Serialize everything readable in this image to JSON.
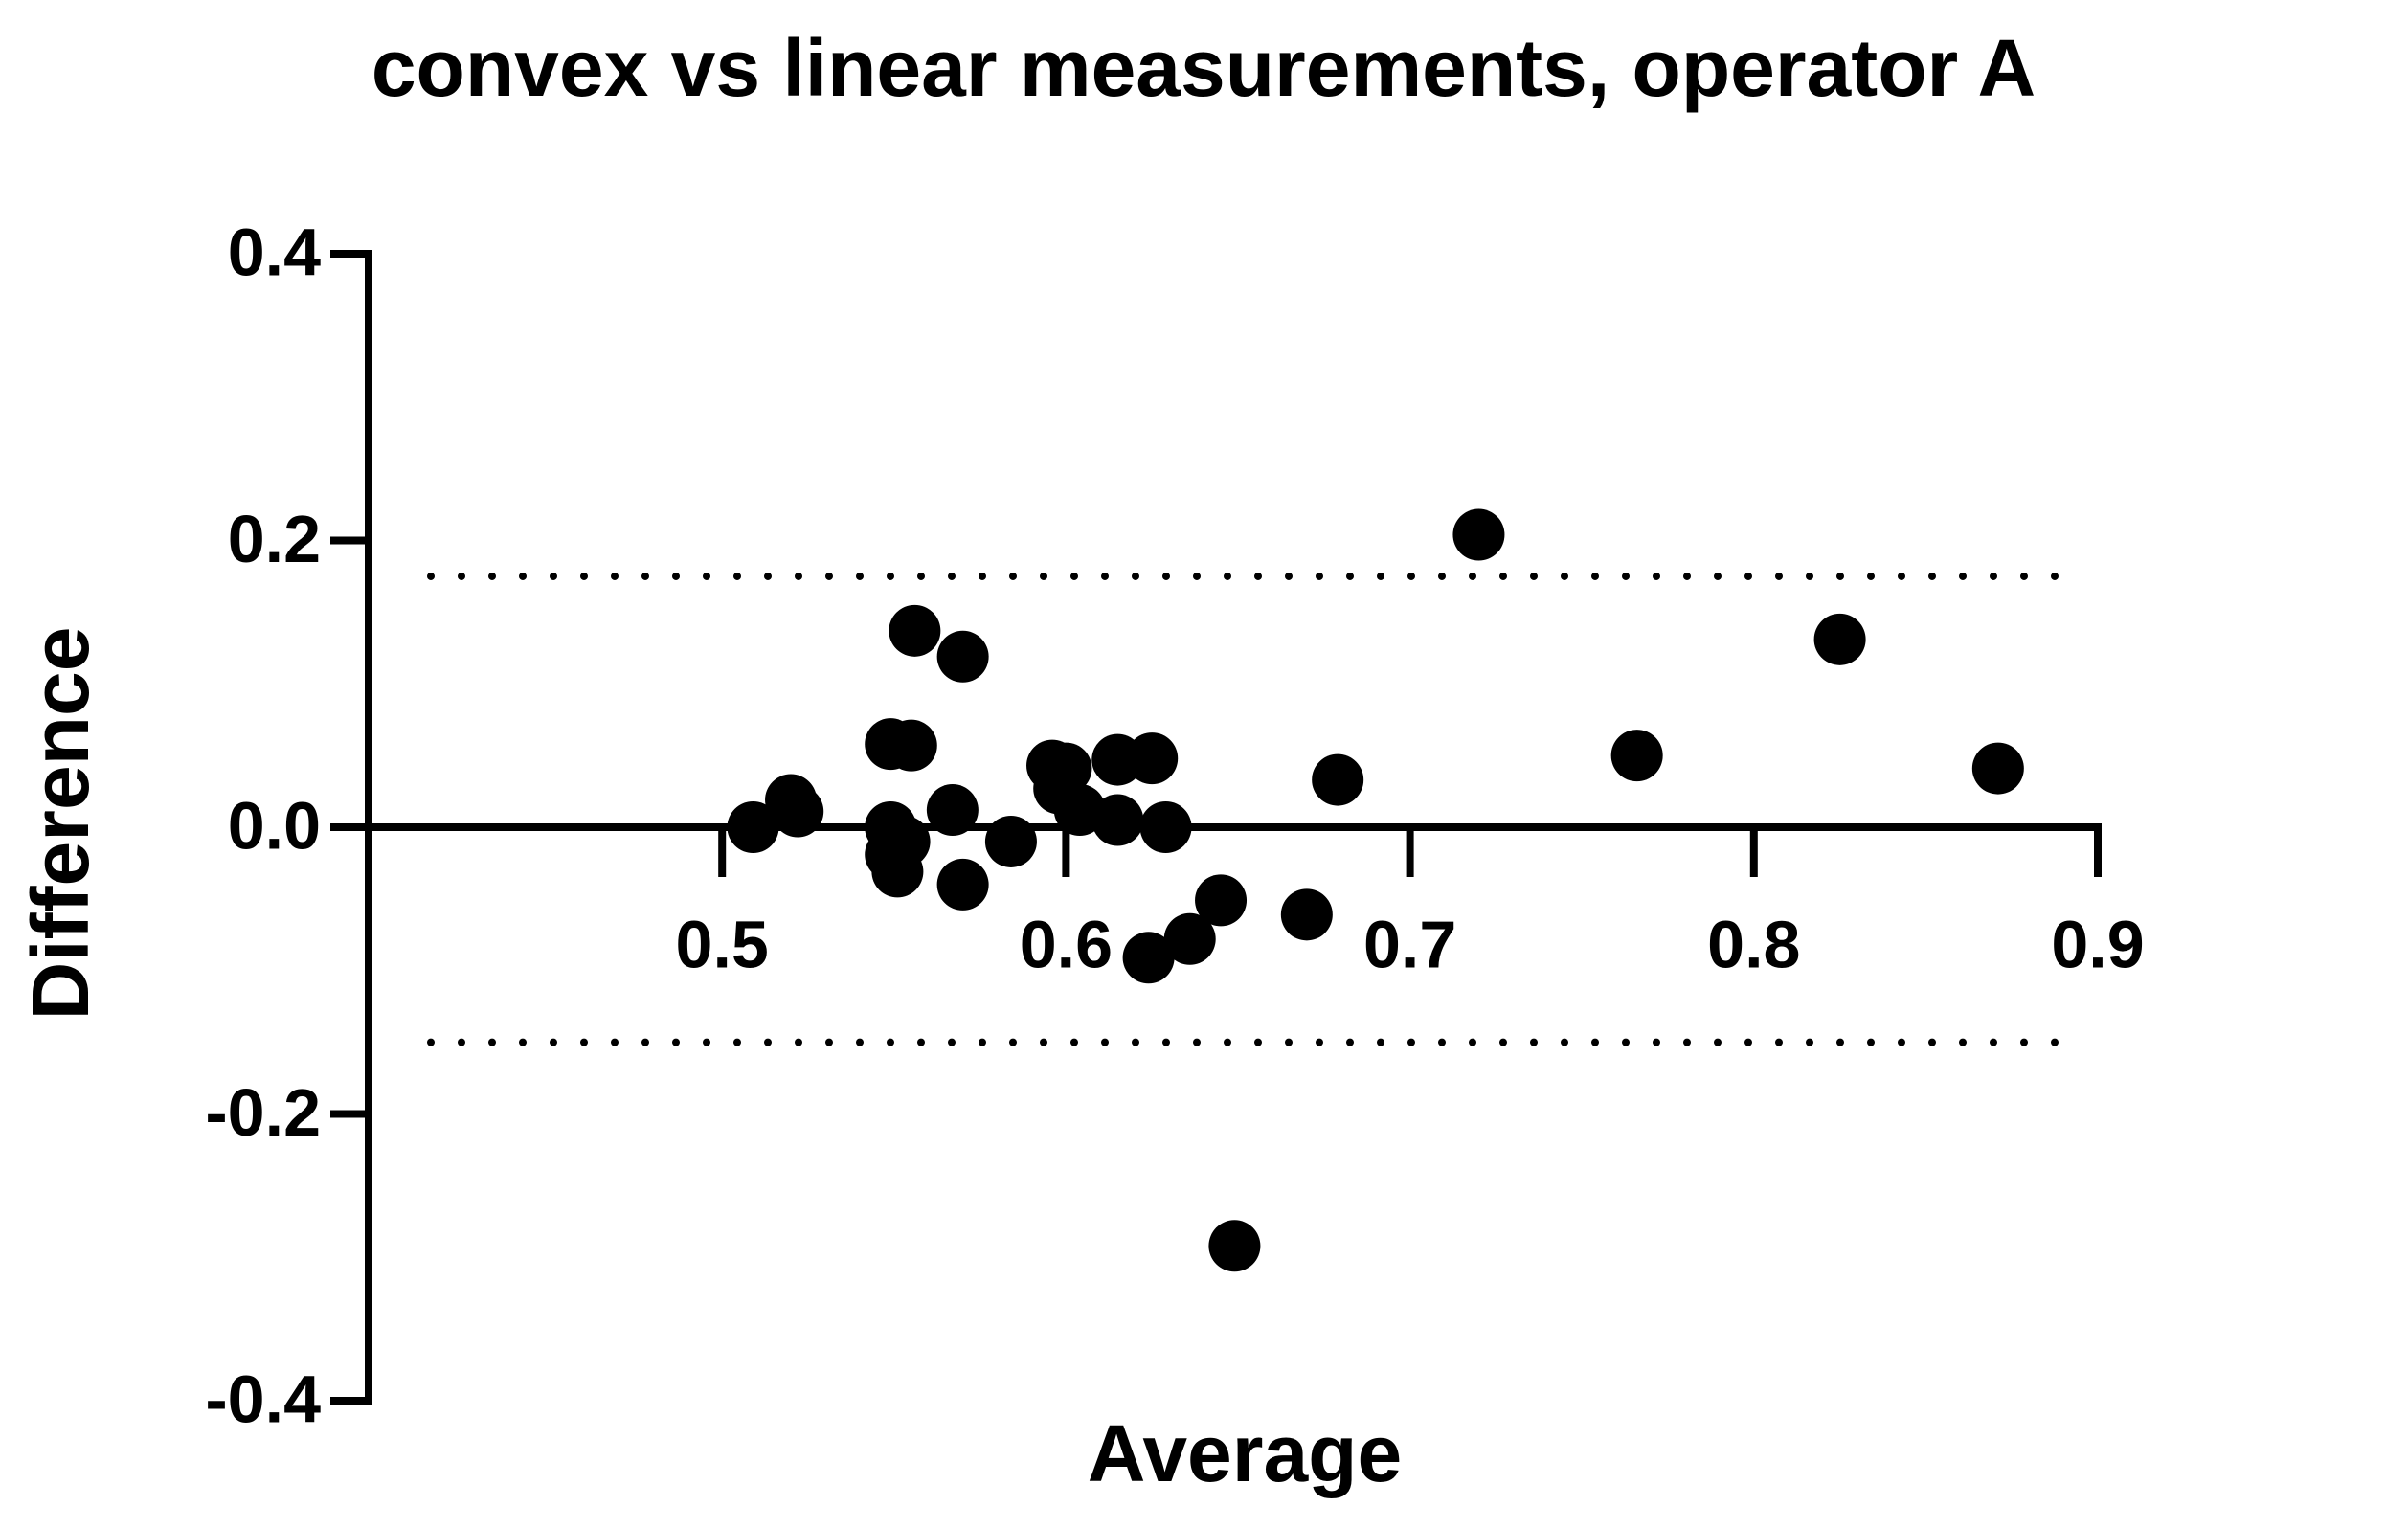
{
  "chart_data": {
    "type": "scatter",
    "title": "convex vs linear measurements, operator A",
    "x_label": "Average",
    "y_label": "Difference",
    "x": [
      0.509,
      0.52,
      0.522,
      0.549,
      0.555,
      0.556,
      0.57,
      0.549,
      0.553,
      0.549,
      0.551,
      0.567,
      0.57,
      0.584,
      0.596,
      0.6,
      0.598,
      0.604,
      0.615,
      0.625,
      0.615,
      0.629,
      0.624,
      0.636,
      0.645,
      0.67,
      0.679,
      0.649,
      0.72,
      0.766,
      0.825,
      0.871
    ],
    "series": [
      {
        "color": "#000000",
        "values": [
          0.0,
          0.019,
          0.011,
          0.058,
          0.057,
          0.137,
          0.119,
          0.0,
          -0.01,
          -0.019,
          -0.031,
          0.012,
          -0.04,
          -0.01,
          0.043,
          0.041,
          0.027,
          0.012,
          0.047,
          0.048,
          0.005,
          0.0,
          -0.091,
          -0.078,
          -0.051,
          -0.061,
          0.033,
          -0.292,
          0.204,
          0.05,
          0.131,
          0.041
        ]
      }
    ],
    "reference_lines": [
      0.175,
      -0.15
    ],
    "xlim": [
      0.4,
      0.9
    ],
    "xticks": [
      0.5,
      0.6,
      0.7,
      0.8,
      0.9
    ],
    "ylim": [
      -0.4,
      0.4
    ],
    "yticks": [
      -0.4,
      -0.2,
      {
        "value": 0,
        "label": "0.0"
      },
      0.2,
      0.4
    ]
  }
}
